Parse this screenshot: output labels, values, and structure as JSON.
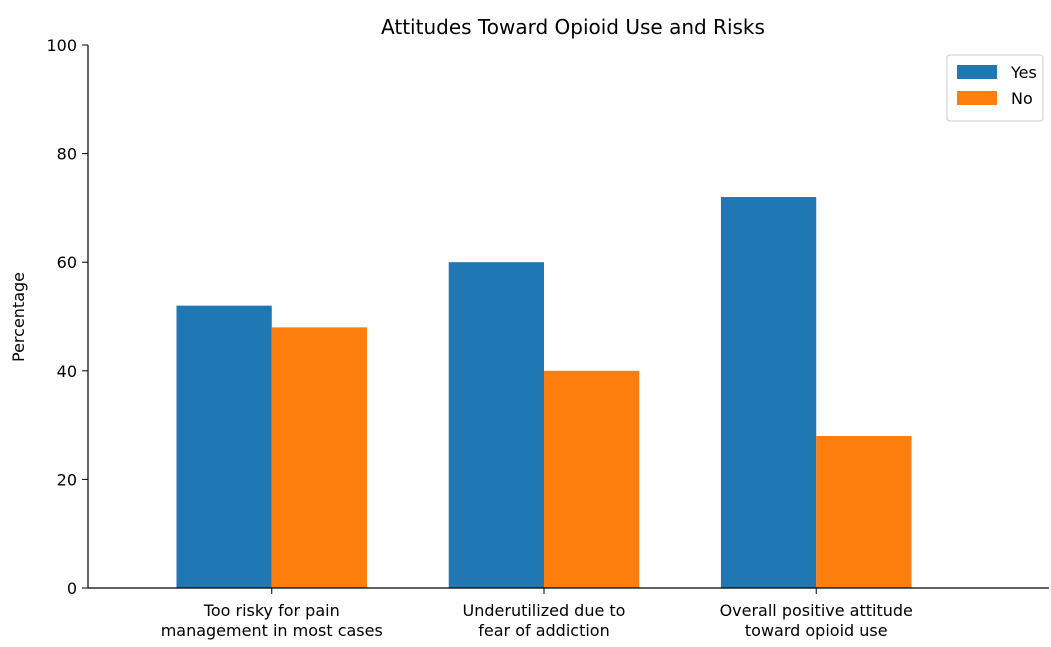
{
  "chart_data": {
    "type": "bar",
    "title": "Attitudes Toward Opioid Use and Risks",
    "xlabel": "",
    "ylabel": "Percentage",
    "ylim": [
      0,
      100
    ],
    "yticks": [
      0,
      20,
      40,
      60,
      80,
      100
    ],
    "categories": [
      [
        "Too risky for pain",
        "management in most cases"
      ],
      [
        "Underutilized due to",
        "fear of addiction"
      ],
      [
        "Overall positive attitude",
        "toward opioid use"
      ]
    ],
    "series": [
      {
        "name": "Yes",
        "color": "#1f77b4",
        "values": [
          52,
          60,
          72
        ]
      },
      {
        "name": "No",
        "color": "#ff7f0e",
        "values": [
          48,
          40,
          28
        ]
      }
    ],
    "legend_position": "top-right",
    "grid": false
  }
}
